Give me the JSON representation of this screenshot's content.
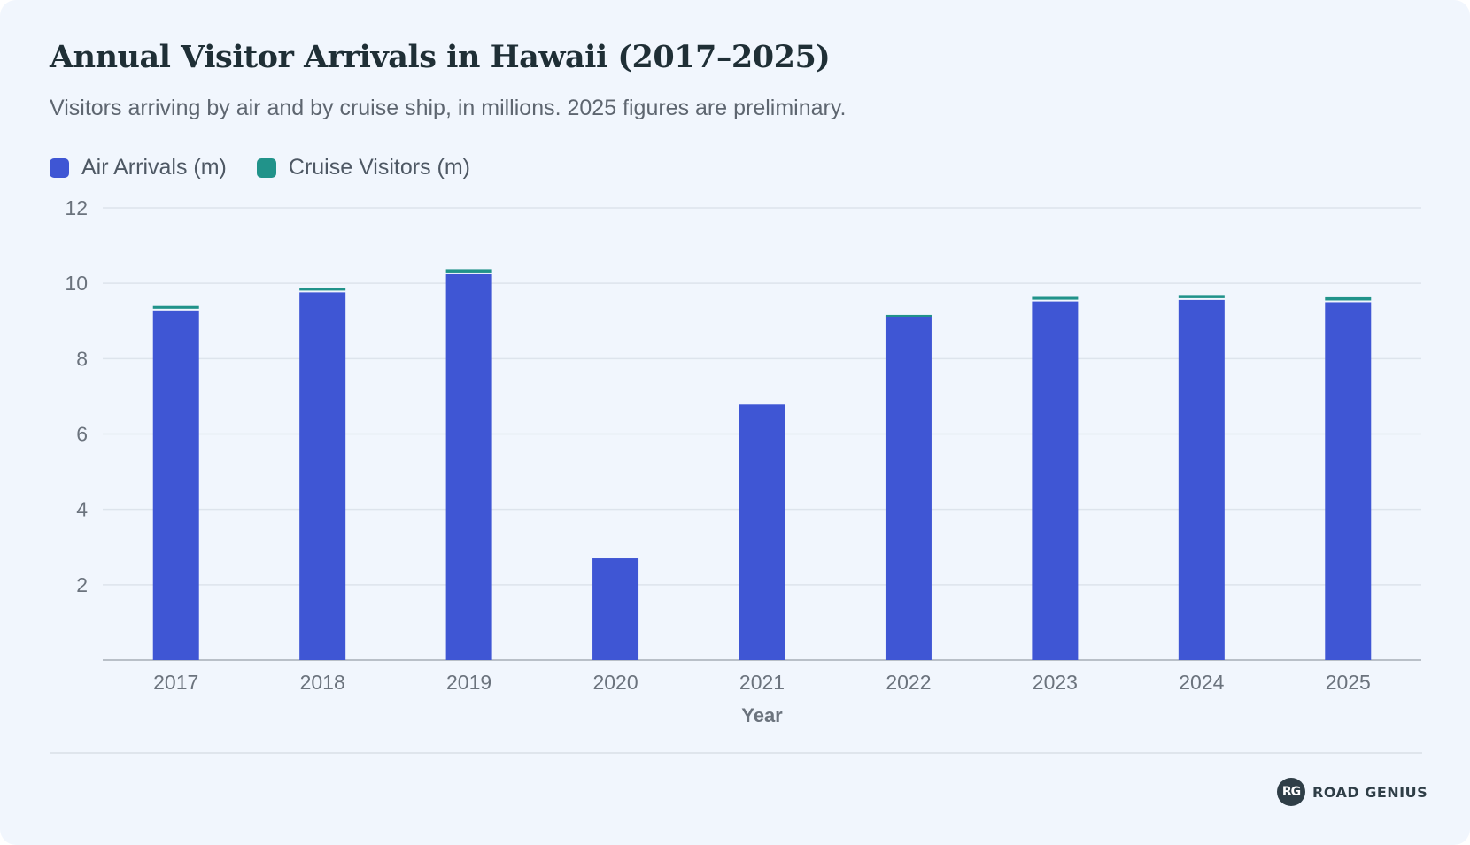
{
  "title": "Annual Visitor Arrivals in Hawaii (2017–2025)",
  "subtitle": "Visitors arriving by air and by cruise ship, in millions. 2025 figures are preliminary.",
  "legend": [
    {
      "label": "Air Arrivals (m)",
      "color": "#3f56d4"
    },
    {
      "label": "Cruise Visitors (m)",
      "color": "#21938a"
    }
  ],
  "brand": {
    "mark": "RG",
    "name": "ROAD GENIUS"
  },
  "chart_data": {
    "type": "bar",
    "stacked": true,
    "categories": [
      "2017",
      "2018",
      "2019",
      "2020",
      "2021",
      "2022",
      "2023",
      "2024",
      "2025"
    ],
    "series": [
      {
        "name": "Air Arrivals (m)",
        "color": "#3f56d4",
        "values": [
          9.28,
          9.76,
          10.24,
          2.7,
          6.78,
          9.14,
          9.52,
          9.56,
          9.5
        ]
      },
      {
        "name": "Cruise Visitors (m)",
        "color": "#21938a",
        "values": [
          0.12,
          0.12,
          0.13,
          0.0,
          0.0,
          0.02,
          0.12,
          0.13,
          0.13
        ]
      }
    ],
    "xlabel": "Year",
    "ylabel": "",
    "ylim": [
      0,
      12
    ],
    "yticks": [
      2,
      4,
      6,
      8,
      10,
      12
    ],
    "grid": true,
    "legend_position": "top-left"
  }
}
